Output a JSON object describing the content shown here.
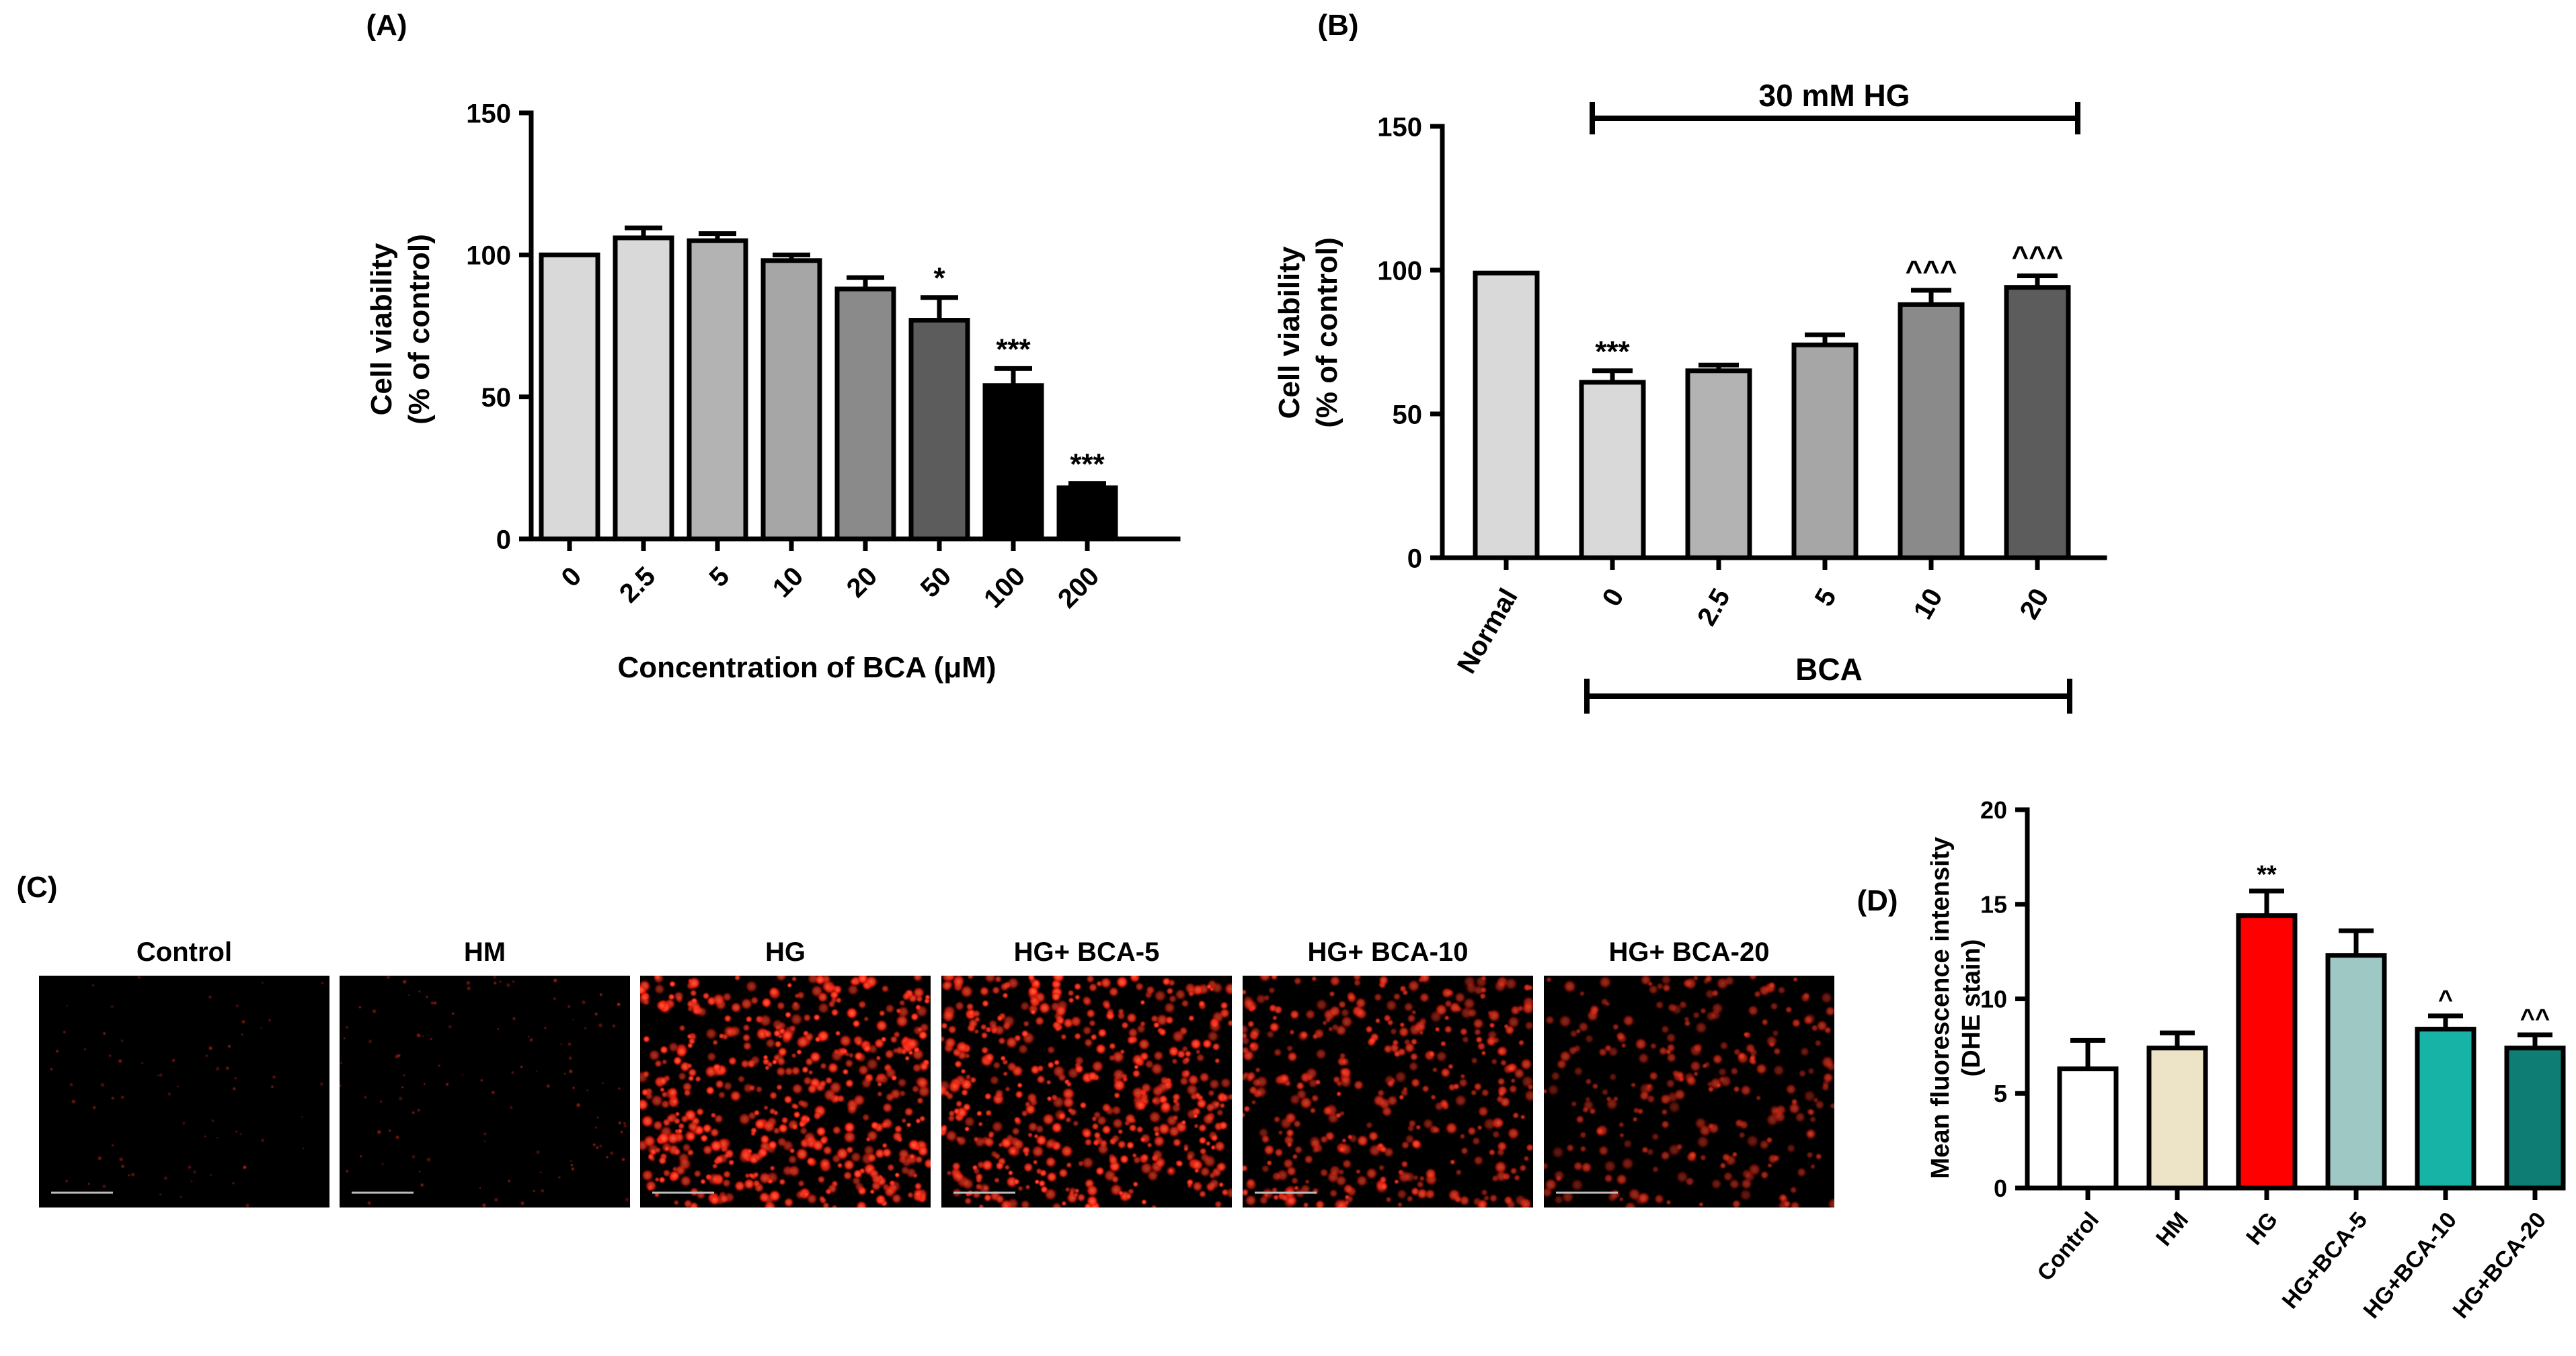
{
  "colors": {
    "cellRed": "#ff2a14",
    "panelBackground": "#000000"
  },
  "chart_data": [
    {
      "panel": "(A)",
      "type": "bar",
      "categories": [
        "0",
        "2.5",
        "5",
        "10",
        "20",
        "50",
        "100",
        "200"
      ],
      "values": [
        100,
        106,
        105,
        98,
        88,
        77,
        54,
        18
      ],
      "errors": [
        0,
        3.5,
        2.5,
        2,
        4,
        8,
        6,
        1.5
      ],
      "annotations": [
        "",
        "",
        "",
        "",
        "",
        "*",
        "***",
        "***"
      ],
      "colors": [
        "#d9d9d9",
        "#d9d9d9",
        "#b3b3b3",
        "#a6a6a6",
        "#8a8a8a",
        "#5c5c5c",
        "#000000",
        "#000000"
      ],
      "xlabel": "Concentration of BCA (μM)",
      "ylabel": [
        "Cell viability",
        "(% of control)"
      ],
      "ylim": [
        0,
        150
      ],
      "yticks": [
        0,
        50,
        100,
        150
      ]
    },
    {
      "panel": "(B)",
      "type": "bar",
      "categories": [
        "Normal",
        "0",
        "2.5",
        "5",
        "10",
        "20"
      ],
      "values": [
        99,
        61,
        65,
        74,
        88,
        94
      ],
      "errors": [
        0,
        4,
        2,
        3.5,
        5,
        4
      ],
      "annotations": [
        "",
        "***",
        "",
        "",
        "^^^",
        "^^^"
      ],
      "colors": [
        "#d9d9d9",
        "#d9d9d9",
        "#b3b3b3",
        "#a6a6a6",
        "#8a8a8a",
        "#5c5c5c"
      ],
      "xlabel": "",
      "ylabel": [
        "Cell viability",
        "(% of control)"
      ],
      "ylim": [
        0,
        150
      ],
      "yticks": [
        0,
        50,
        100,
        150
      ],
      "topBracket": "30 mM HG",
      "bottomBracket": "BCA"
    },
    {
      "panel": "(D)",
      "type": "bar",
      "categories": [
        "Control",
        "HM",
        "HG",
        "HG+BCA-5",
        "HG+BCA-10",
        "HG+BCA-20"
      ],
      "values": [
        6.3,
        7.4,
        14.4,
        12.3,
        8.4,
        7.4
      ],
      "errors": [
        1.5,
        0.8,
        1.3,
        1.3,
        0.7,
        0.7
      ],
      "annotations": [
        "",
        "",
        "**",
        "",
        "^",
        "^^"
      ],
      "colors": [
        "#ffffff",
        "#ede4c8",
        "#ff0000",
        "#9ec8c4",
        "#17b3a6",
        "#0e7e74"
      ],
      "xlabel": "",
      "ylabel": [
        "Mean fluorescence intensity",
        "(DHE stain)"
      ],
      "ylim": [
        0,
        20
      ],
      "yticks": [
        0,
        5,
        10,
        15,
        20
      ]
    }
  ],
  "micrographs": {
    "panel": "(C)",
    "items": [
      {
        "label": "Control",
        "intensity": 0.06
      },
      {
        "label": "HM",
        "intensity": 0.14
      },
      {
        "label": "HG",
        "intensity": 1.0
      },
      {
        "label": "HG+ BCA-5",
        "intensity": 0.95
      },
      {
        "label": "HG+ BCA-10",
        "intensity": 0.7
      },
      {
        "label": "HG+ BCA-20",
        "intensity": 0.45
      }
    ]
  }
}
